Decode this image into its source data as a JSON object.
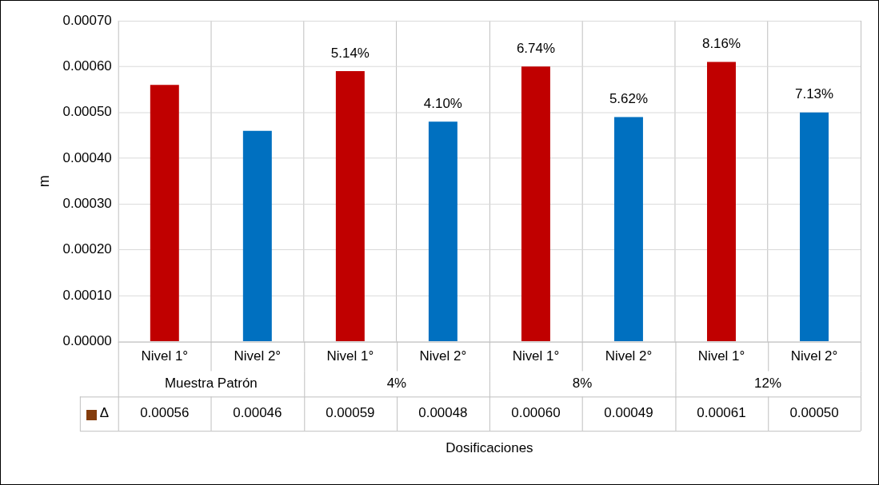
{
  "chart_data": {
    "type": "bar",
    "ylabel": "m",
    "categories": [
      "Nivel 1°",
      "Nivel 2°",
      "Nivel 1°",
      "Nivel 2°",
      "Nivel 1°",
      "Nivel 2°",
      "Nivel 1°",
      "Nivel 2°"
    ],
    "series": [
      {
        "name": "Δ",
        "color": "#843c0c",
        "colors": [
          "#c00000",
          "#0070c0",
          "#c00000",
          "#0070c0",
          "#c00000",
          "#0070c0",
          "#c00000",
          "#0070c0"
        ],
        "values": [
          0.00056,
          0.00046,
          0.00059,
          0.00048,
          0.0006,
          0.00049,
          0.00061,
          0.0005
        ],
        "value_labels": [
          "0.00056",
          "0.00046",
          "0.00059",
          "0.00048",
          "0.00060",
          "0.00049",
          "0.00061",
          "0.00050"
        ]
      }
    ],
    "annotations": [
      "Muestra Patrón",
      "4%",
      "8%",
      "12%",
      "Dosificaciones",
      "5.14%",
      "4.10%",
      "6.74%",
      "5.62%",
      "8.16%",
      "7.13%"
    ],
    "ylim": [
      0,
      0.0007
    ],
    "yticks": [
      {
        "value": 0,
        "label": "0.00000"
      },
      {
        "value": 0.0001,
        "label": "0.00010"
      },
      {
        "value": 0.0002,
        "label": "0.00020"
      },
      {
        "value": 0.0003,
        "label": "0.00030"
      },
      {
        "value": 0.0004,
        "label": "0.00040"
      },
      {
        "value": 0.0005,
        "label": "0.00050"
      },
      {
        "value": 0.0006,
        "label": "0.00060"
      },
      {
        "value": 0.0007,
        "label": "0.00070"
      }
    ],
    "grid": true,
    "legend": "bottom"
  }
}
